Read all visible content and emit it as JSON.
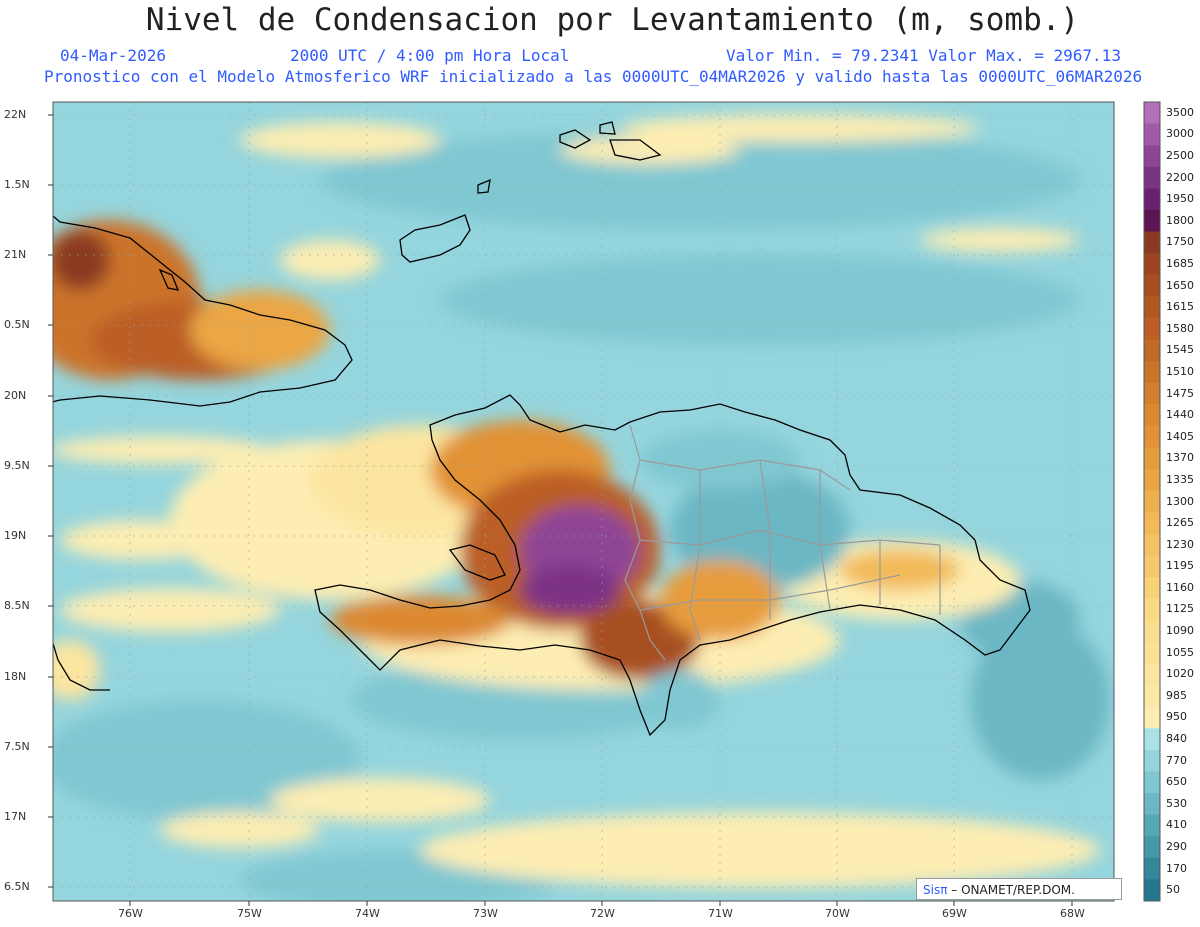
{
  "header": {
    "title": "Nivel de Condensacion por Levantamiento (m, somb.)",
    "date": "04-Mar-2026",
    "time": "2000 UTC / 4:00 pm Hora Local",
    "min_max": "Valor Min. = 79.2341  Valor Max. = 2967.13",
    "description": "Pronostico con el Modelo Atmosferico WRF inicializado a las 0000UTC_04MAR2026 y valido hasta las  0000UTC_06MAR2026"
  },
  "axes": {
    "lat_labels": [
      "22N",
      "1.5N",
      "21N",
      "0.5N",
      "20N",
      "9.5N",
      "19N",
      "8.5N",
      "18N",
      "7.5N",
      "17N",
      "6.5N"
    ],
    "lon_labels": [
      "76W",
      "75W",
      "74W",
      "73W",
      "72W",
      "71W",
      "70W",
      "69W",
      "68W"
    ]
  },
  "colorbar": {
    "levels": [
      "3500",
      "3000",
      "2500",
      "2200",
      "1950",
      "1800",
      "1750",
      "1685",
      "1650",
      "1615",
      "1580",
      "1545",
      "1510",
      "1475",
      "1440",
      "1405",
      "1370",
      "1335",
      "1300",
      "1265",
      "1230",
      "1195",
      "1160",
      "1125",
      "1090",
      "1055",
      "1020",
      "985",
      "950",
      "840",
      "770",
      "650",
      "530",
      "410",
      "290",
      "170",
      "50"
    ],
    "colors": [
      "#b36fb8",
      "#a25aa8",
      "#8f4596",
      "#7b3385",
      "#6a2070",
      "#5c1552",
      "#8a3a22",
      "#9b4522",
      "#a84f22",
      "#b25624",
      "#bb5f26",
      "#c46a28",
      "#cc732b",
      "#d47f2e",
      "#dc8932",
      "#e29236",
      "#e79c3c",
      "#eba644",
      "#efb04e",
      "#f2b958",
      "#f4c262",
      "#f6ca6c",
      "#f8d278",
      "#f9d983",
      "#fadd8e",
      "#fbe197",
      "#fce5a0",
      "#fce9a8",
      "#fdedb2",
      "#a9e3e8",
      "#95d5dd",
      "#80c7d2",
      "#6cb7c4",
      "#58a7b6",
      "#4697a8",
      "#33879a",
      "#23778c"
    ]
  },
  "credit": {
    "logo": "Sisπ",
    "text": "– ONAMET/REP.DOM."
  }
}
